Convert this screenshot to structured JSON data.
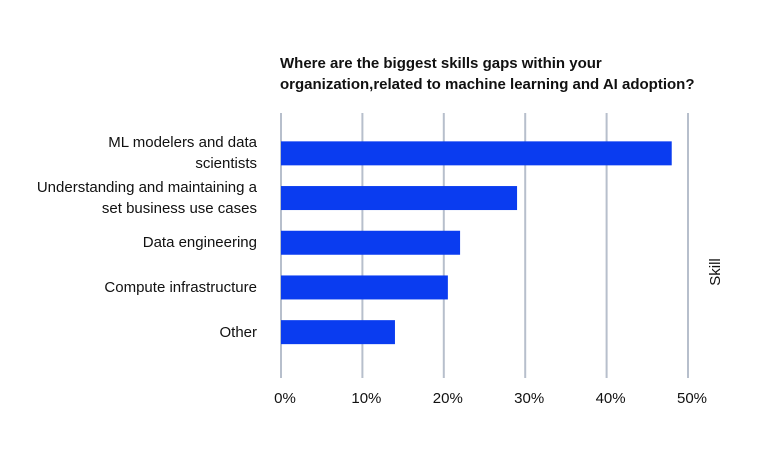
{
  "chart_data": {
    "type": "bar",
    "orientation": "horizontal",
    "title": "Where are the biggest skills gaps within your organization,related to machine learning and AI adoption?",
    "y_label": "Skill",
    "categories": [
      "ML modelers and data scientists",
      "Understanding and maintaining a set business use cases",
      "Data engineering",
      "Compute infrastructure",
      "Other"
    ],
    "values": [
      48,
      29,
      22,
      20.5,
      14
    ],
    "color": "#0a3cf0",
    "xlim": [
      0,
      50
    ],
    "xticks": [
      {
        "value": 0,
        "label": "0%"
      },
      {
        "value": 10,
        "label": "10%"
      },
      {
        "value": 20,
        "label": "20%"
      },
      {
        "value": 30,
        "label": "30%"
      },
      {
        "value": 40,
        "label": "40%"
      },
      {
        "value": 50,
        "label": "50%"
      }
    ],
    "grid": true
  }
}
